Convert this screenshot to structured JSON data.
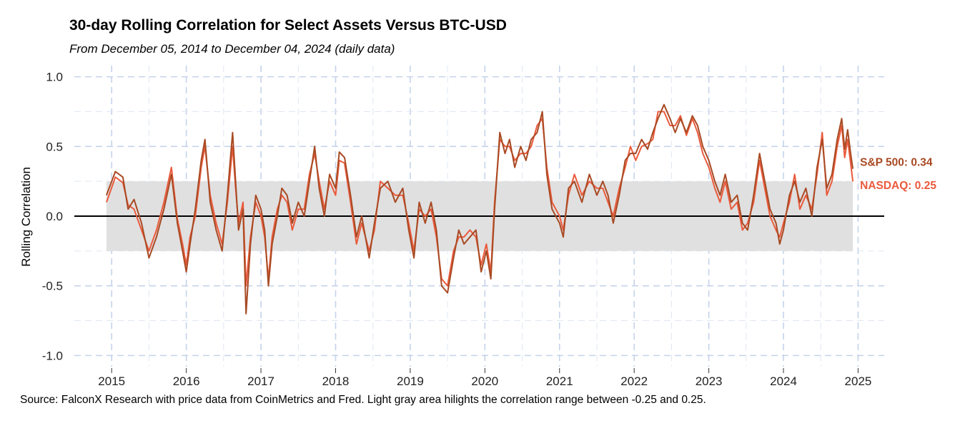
{
  "chart_data": {
    "type": "line",
    "title": "30-day Rolling Correlation for Select Assets Versus BTC-USD",
    "subtitle": "From December 05, 2014 to December 04, 2024 (daily data)",
    "caption": "Source: FalconX Research with price data from CoinMetrics and Fred. Light gray area hilights the correlation range between -0.25 and 0.25.",
    "xlabel": "",
    "ylabel": "Rolling Correlation",
    "xlim": [
      2014.5,
      2025.35
    ],
    "ylim": [
      -1.08,
      1.08
    ],
    "x_ticks": [
      2015,
      2016,
      2017,
      2018,
      2019,
      2020,
      2021,
      2022,
      2023,
      2024,
      2025
    ],
    "x_tick_labels": [
      "2015",
      "2016",
      "2017",
      "2018",
      "2019",
      "2020",
      "2021",
      "2022",
      "2023",
      "2024",
      "2025"
    ],
    "y_ticks": [
      1.0,
      0.5,
      0.0,
      -0.5,
      -1.0
    ],
    "y_tick_labels": [
      "1.0",
      "0.5",
      "0.0",
      "-0.5",
      "-1.0"
    ],
    "grid": true,
    "band": {
      "from": -0.25,
      "to": 0.25,
      "x_start": 2014.93,
      "x_end": 2024.93,
      "color": "#e0e0e0"
    },
    "reference_line": 0,
    "series": [
      {
        "name": "S&P 500",
        "color": "#a84a23",
        "end_label": "S&P 500: 0.34",
        "points": [
          [
            2014.93,
            0.15
          ],
          [
            2015.05,
            0.32
          ],
          [
            2015.15,
            0.28
          ],
          [
            2015.22,
            0.05
          ],
          [
            2015.3,
            0.12
          ],
          [
            2015.4,
            -0.05
          ],
          [
            2015.5,
            -0.3
          ],
          [
            2015.6,
            -0.15
          ],
          [
            2015.7,
            0.05
          ],
          [
            2015.8,
            0.3
          ],
          [
            2015.88,
            -0.05
          ],
          [
            2015.95,
            -0.25
          ],
          [
            2016.0,
            -0.4
          ],
          [
            2016.05,
            -0.2
          ],
          [
            2016.12,
            0.05
          ],
          [
            2016.2,
            0.4
          ],
          [
            2016.25,
            0.55
          ],
          [
            2016.32,
            0.1
          ],
          [
            2016.4,
            -0.1
          ],
          [
            2016.48,
            -0.25
          ],
          [
            2016.55,
            0.15
          ],
          [
            2016.62,
            0.6
          ],
          [
            2016.66,
            0.25
          ],
          [
            2016.7,
            -0.1
          ],
          [
            2016.76,
            0.05
          ],
          [
            2016.8,
            -0.7
          ],
          [
            2016.86,
            -0.2
          ],
          [
            2016.93,
            0.15
          ],
          [
            2017.0,
            0.05
          ],
          [
            2017.05,
            -0.1
          ],
          [
            2017.1,
            -0.5
          ],
          [
            2017.15,
            -0.2
          ],
          [
            2017.22,
            0.0
          ],
          [
            2017.28,
            0.2
          ],
          [
            2017.35,
            0.15
          ],
          [
            2017.42,
            -0.05
          ],
          [
            2017.5,
            0.1
          ],
          [
            2017.58,
            0.0
          ],
          [
            2017.65,
            0.25
          ],
          [
            2017.72,
            0.5
          ],
          [
            2017.78,
            0.2
          ],
          [
            2017.85,
            0.0
          ],
          [
            2017.92,
            0.3
          ],
          [
            2018.0,
            0.2
          ],
          [
            2018.05,
            0.46
          ],
          [
            2018.12,
            0.42
          ],
          [
            2018.2,
            0.15
          ],
          [
            2018.28,
            -0.15
          ],
          [
            2018.35,
            0.0
          ],
          [
            2018.45,
            -0.3
          ],
          [
            2018.52,
            -0.05
          ],
          [
            2018.6,
            0.2
          ],
          [
            2018.7,
            0.25
          ],
          [
            2018.8,
            0.1
          ],
          [
            2018.9,
            0.2
          ],
          [
            2018.98,
            -0.1
          ],
          [
            2019.05,
            -0.3
          ],
          [
            2019.12,
            0.1
          ],
          [
            2019.2,
            -0.05
          ],
          [
            2019.28,
            0.1
          ],
          [
            2019.35,
            -0.1
          ],
          [
            2019.42,
            -0.5
          ],
          [
            2019.5,
            -0.55
          ],
          [
            2019.58,
            -0.3
          ],
          [
            2019.65,
            -0.1
          ],
          [
            2019.72,
            -0.2
          ],
          [
            2019.8,
            -0.15
          ],
          [
            2019.88,
            -0.1
          ],
          [
            2019.95,
            -0.4
          ],
          [
            2020.02,
            -0.25
          ],
          [
            2020.08,
            -0.45
          ],
          [
            2020.13,
            0.05
          ],
          [
            2020.2,
            0.6
          ],
          [
            2020.27,
            0.45
          ],
          [
            2020.33,
            0.55
          ],
          [
            2020.4,
            0.35
          ],
          [
            2020.48,
            0.5
          ],
          [
            2020.55,
            0.4
          ],
          [
            2020.62,
            0.55
          ],
          [
            2020.7,
            0.6
          ],
          [
            2020.77,
            0.75
          ],
          [
            2020.83,
            0.3
          ],
          [
            2020.9,
            0.05
          ],
          [
            2021.0,
            -0.05
          ],
          [
            2021.05,
            -0.15
          ],
          [
            2021.12,
            0.2
          ],
          [
            2021.2,
            0.25
          ],
          [
            2021.3,
            0.1
          ],
          [
            2021.4,
            0.3
          ],
          [
            2021.5,
            0.15
          ],
          [
            2021.58,
            0.25
          ],
          [
            2021.65,
            0.15
          ],
          [
            2021.72,
            -0.05
          ],
          [
            2021.8,
            0.15
          ],
          [
            2021.88,
            0.4
          ],
          [
            2021.95,
            0.45
          ],
          [
            2022.02,
            0.45
          ],
          [
            2022.1,
            0.55
          ],
          [
            2022.18,
            0.48
          ],
          [
            2022.25,
            0.6
          ],
          [
            2022.32,
            0.7
          ],
          [
            2022.4,
            0.8
          ],
          [
            2022.48,
            0.7
          ],
          [
            2022.55,
            0.6
          ],
          [
            2022.62,
            0.7
          ],
          [
            2022.7,
            0.6
          ],
          [
            2022.78,
            0.72
          ],
          [
            2022.85,
            0.65
          ],
          [
            2022.92,
            0.5
          ],
          [
            2023.0,
            0.4
          ],
          [
            2023.08,
            0.25
          ],
          [
            2023.15,
            0.15
          ],
          [
            2023.22,
            0.3
          ],
          [
            2023.3,
            0.1
          ],
          [
            2023.38,
            0.15
          ],
          [
            2023.45,
            -0.05
          ],
          [
            2023.52,
            -0.1
          ],
          [
            2023.6,
            0.15
          ],
          [
            2023.68,
            0.45
          ],
          [
            2023.75,
            0.25
          ],
          [
            2023.82,
            0.05
          ],
          [
            2023.9,
            -0.05
          ],
          [
            2023.95,
            -0.2
          ],
          [
            2024.0,
            -0.1
          ],
          [
            2024.08,
            0.15
          ],
          [
            2024.15,
            0.25
          ],
          [
            2024.22,
            0.1
          ],
          [
            2024.3,
            0.2
          ],
          [
            2024.38,
            0.0
          ],
          [
            2024.45,
            0.35
          ],
          [
            2024.52,
            0.55
          ],
          [
            2024.58,
            0.2
          ],
          [
            2024.65,
            0.3
          ],
          [
            2024.72,
            0.55
          ],
          [
            2024.78,
            0.7
          ],
          [
            2024.82,
            0.48
          ],
          [
            2024.86,
            0.62
          ],
          [
            2024.9,
            0.45
          ],
          [
            2024.93,
            0.34
          ]
        ]
      },
      {
        "name": "NASDAQ",
        "color": "#ea5a3c",
        "end_label": "NASDAQ: 0.25",
        "points": [
          [
            2014.93,
            0.1
          ],
          [
            2015.05,
            0.28
          ],
          [
            2015.15,
            0.24
          ],
          [
            2015.22,
            0.08
          ],
          [
            2015.3,
            0.05
          ],
          [
            2015.4,
            -0.1
          ],
          [
            2015.5,
            -0.25
          ],
          [
            2015.6,
            -0.1
          ],
          [
            2015.7,
            0.1
          ],
          [
            2015.8,
            0.35
          ],
          [
            2015.88,
            -0.02
          ],
          [
            2015.95,
            -0.2
          ],
          [
            2016.0,
            -0.35
          ],
          [
            2016.05,
            -0.15
          ],
          [
            2016.12,
            0.0
          ],
          [
            2016.2,
            0.35
          ],
          [
            2016.25,
            0.5
          ],
          [
            2016.32,
            0.15
          ],
          [
            2016.4,
            -0.05
          ],
          [
            2016.48,
            -0.2
          ],
          [
            2016.55,
            0.1
          ],
          [
            2016.62,
            0.5
          ],
          [
            2016.66,
            0.2
          ],
          [
            2016.7,
            -0.05
          ],
          [
            2016.76,
            0.1
          ],
          [
            2016.8,
            -0.5
          ],
          [
            2016.86,
            -0.15
          ],
          [
            2016.93,
            0.1
          ],
          [
            2017.0,
            0.0
          ],
          [
            2017.05,
            -0.15
          ],
          [
            2017.1,
            -0.45
          ],
          [
            2017.15,
            -0.15
          ],
          [
            2017.22,
            0.05
          ],
          [
            2017.28,
            0.15
          ],
          [
            2017.35,
            0.1
          ],
          [
            2017.42,
            -0.1
          ],
          [
            2017.5,
            0.05
          ],
          [
            2017.58,
            0.05
          ],
          [
            2017.65,
            0.3
          ],
          [
            2017.72,
            0.45
          ],
          [
            2017.78,
            0.25
          ],
          [
            2017.85,
            0.05
          ],
          [
            2017.92,
            0.25
          ],
          [
            2018.0,
            0.15
          ],
          [
            2018.05,
            0.4
          ],
          [
            2018.12,
            0.38
          ],
          [
            2018.2,
            0.1
          ],
          [
            2018.28,
            -0.2
          ],
          [
            2018.35,
            -0.05
          ],
          [
            2018.45,
            -0.25
          ],
          [
            2018.52,
            -0.1
          ],
          [
            2018.6,
            0.25
          ],
          [
            2018.7,
            0.2
          ],
          [
            2018.8,
            0.15
          ],
          [
            2018.9,
            0.15
          ],
          [
            2018.98,
            -0.05
          ],
          [
            2019.05,
            -0.25
          ],
          [
            2019.12,
            0.05
          ],
          [
            2019.2,
            0.0
          ],
          [
            2019.28,
            0.05
          ],
          [
            2019.35,
            -0.15
          ],
          [
            2019.42,
            -0.45
          ],
          [
            2019.5,
            -0.5
          ],
          [
            2019.58,
            -0.25
          ],
          [
            2019.65,
            -0.15
          ],
          [
            2019.72,
            -0.15
          ],
          [
            2019.8,
            -0.1
          ],
          [
            2019.88,
            -0.15
          ],
          [
            2019.95,
            -0.35
          ],
          [
            2020.02,
            -0.2
          ],
          [
            2020.08,
            -0.4
          ],
          [
            2020.13,
            0.1
          ],
          [
            2020.2,
            0.55
          ],
          [
            2020.27,
            0.5
          ],
          [
            2020.33,
            0.5
          ],
          [
            2020.4,
            0.4
          ],
          [
            2020.48,
            0.45
          ],
          [
            2020.55,
            0.45
          ],
          [
            2020.62,
            0.5
          ],
          [
            2020.7,
            0.65
          ],
          [
            2020.77,
            0.7
          ],
          [
            2020.83,
            0.35
          ],
          [
            2020.9,
            0.1
          ],
          [
            2021.0,
            0.0
          ],
          [
            2021.05,
            -0.1
          ],
          [
            2021.12,
            0.15
          ],
          [
            2021.2,
            0.3
          ],
          [
            2021.3,
            0.15
          ],
          [
            2021.4,
            0.25
          ],
          [
            2021.5,
            0.2
          ],
          [
            2021.58,
            0.2
          ],
          [
            2021.65,
            0.1
          ],
          [
            2021.72,
            0.0
          ],
          [
            2021.8,
            0.2
          ],
          [
            2021.88,
            0.35
          ],
          [
            2021.95,
            0.5
          ],
          [
            2022.02,
            0.4
          ],
          [
            2022.1,
            0.5
          ],
          [
            2022.18,
            0.52
          ],
          [
            2022.25,
            0.55
          ],
          [
            2022.32,
            0.75
          ],
          [
            2022.4,
            0.75
          ],
          [
            2022.48,
            0.65
          ],
          [
            2022.55,
            0.65
          ],
          [
            2022.62,
            0.72
          ],
          [
            2022.7,
            0.58
          ],
          [
            2022.78,
            0.7
          ],
          [
            2022.85,
            0.6
          ],
          [
            2022.92,
            0.45
          ],
          [
            2023.0,
            0.35
          ],
          [
            2023.08,
            0.2
          ],
          [
            2023.15,
            0.1
          ],
          [
            2023.22,
            0.25
          ],
          [
            2023.3,
            0.05
          ],
          [
            2023.38,
            0.1
          ],
          [
            2023.45,
            -0.1
          ],
          [
            2023.52,
            -0.05
          ],
          [
            2023.6,
            0.1
          ],
          [
            2023.68,
            0.4
          ],
          [
            2023.75,
            0.2
          ],
          [
            2023.82,
            0.0
          ],
          [
            2023.9,
            -0.1
          ],
          [
            2023.95,
            -0.15
          ],
          [
            2024.0,
            -0.05
          ],
          [
            2024.08,
            0.1
          ],
          [
            2024.15,
            0.3
          ],
          [
            2024.22,
            0.05
          ],
          [
            2024.3,
            0.15
          ],
          [
            2024.38,
            0.05
          ],
          [
            2024.45,
            0.3
          ],
          [
            2024.52,
            0.6
          ],
          [
            2024.58,
            0.15
          ],
          [
            2024.65,
            0.25
          ],
          [
            2024.72,
            0.5
          ],
          [
            2024.78,
            0.65
          ],
          [
            2024.82,
            0.42
          ],
          [
            2024.86,
            0.55
          ],
          [
            2024.9,
            0.38
          ],
          [
            2024.93,
            0.25
          ]
        ]
      }
    ]
  }
}
